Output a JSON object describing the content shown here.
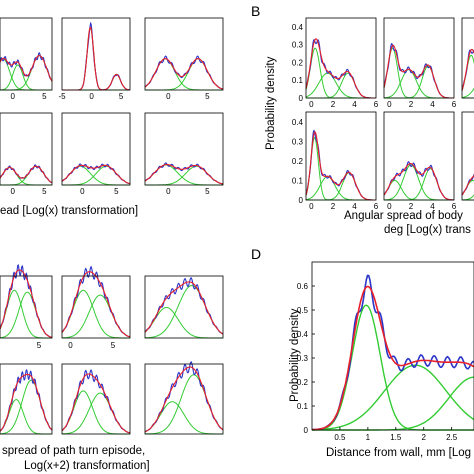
{
  "colors": {
    "fit": "#e8202a",
    "observed": "#2b35c8",
    "components": "#33cc33"
  },
  "panels": {
    "A": {
      "xlabel": "ead [Log(x) transformation]",
      "ticks": [
        [
          "0",
          "5"
        ],
        [
          "-5",
          "0",
          "5"
        ],
        [
          "0",
          "5"
        ],
        [
          "0",
          "5"
        ],
        [
          "0",
          "5"
        ],
        [
          "0",
          "5"
        ]
      ]
    },
    "B": {
      "letter": "B",
      "ylabel": "Probability density",
      "xlabel_line1": "Angular spread of body",
      "xlabel_line2": "deg [Log(x) trans",
      "yticks": [
        "0.4",
        "0.3",
        "0.2",
        "0.1",
        "0"
      ],
      "xticks": [
        "0",
        "2",
        "4",
        "6"
      ]
    },
    "C": {
      "xlabel_line1": "spread of path turn episode,",
      "xlabel_line2": "Log(x+2) transformation]",
      "ticks": [
        "5",
        "0",
        "5"
      ]
    },
    "D": {
      "letter": "D",
      "ylabel": "Probability density",
      "xlabel": "Distance from wall, mm [Log",
      "yticks": [
        "0.6",
        "0.5",
        "0.4",
        "0.3",
        "0.2",
        "0.1",
        "0"
      ],
      "xticks": [
        "0.5",
        "1",
        "1.5",
        "2",
        "2.5"
      ]
    }
  },
  "chart_data": [
    {
      "type": "line",
      "panel": "A",
      "title": "",
      "xlabel": "ead [Log(x) transformation]",
      "ylabel": "",
      "layout": "2x3 small multiples",
      "xlim": [
        -5,
        7
      ],
      "x_ticks": [
        -5,
        0,
        5
      ],
      "series_note": "red = fitted mixture, blue = observed density, green = mixture components",
      "subplots": [
        {
          "components": [
            [
              -1.5,
              1.0,
              0.5
            ],
            [
              0.8,
              0.8,
              0.4
            ],
            [
              4.2,
              1.2,
              0.55
            ]
          ]
        },
        {
          "components": [
            [
              -0.2,
              0.55,
              1.0
            ],
            [
              4.2,
              0.7,
              0.25
            ]
          ]
        },
        {
          "components": [
            [
              -0.4,
              1.2,
              0.5
            ],
            [
              3.8,
              1.2,
              0.5
            ]
          ]
        },
        {
          "components": [
            [
              -0.5,
              1.1,
              0.28
            ],
            [
              3.7,
              1.2,
              0.3
            ]
          ]
        },
        {
          "components": [
            [
              -0.3,
              1.5,
              0.3
            ],
            [
              3.5,
              1.5,
              0.3
            ]
          ]
        },
        {
          "components": [
            [
              -0.3,
              1.5,
              0.32
            ],
            [
              3.6,
              1.4,
              0.3
            ]
          ]
        }
      ]
    },
    {
      "type": "line",
      "panel": "B",
      "title": "",
      "xlabel": "Angular spread of body deg [Log(x) trans",
      "ylabel": "Probability density",
      "layout": "2x3 small multiples (partly visible)",
      "xlim": [
        -0.5,
        6
      ],
      "ylim": [
        0,
        0.45
      ],
      "x_ticks": [
        0,
        2,
        4,
        6
      ],
      "y_ticks": [
        0,
        0.1,
        0.2,
        0.3,
        0.4
      ],
      "subplots": [
        {
          "components": [
            [
              0.35,
              0.45,
              0.28
            ],
            [
              1.5,
              0.8,
              0.14
            ],
            [
              3.4,
              0.6,
              0.14
            ]
          ]
        },
        {
          "components": [
            [
              0.3,
              0.45,
              0.28
            ],
            [
              1.8,
              0.7,
              0.16
            ],
            [
              3.6,
              0.55,
              0.18
            ]
          ]
        },
        {
          "components": [
            [
              0.35,
              0.45,
              0.24
            ],
            [
              1.8,
              0.8,
              0.16
            ],
            [
              3.6,
              0.6,
              0.16
            ]
          ]
        },
        {
          "components": [
            [
              0.3,
              0.35,
              0.32
            ],
            [
              1.5,
              0.7,
              0.12
            ],
            [
              3.5,
              0.6,
              0.14
            ]
          ]
        },
        {
          "components": [
            [
              0.5,
              0.6,
              0.1
            ],
            [
              2.0,
              0.7,
              0.18
            ],
            [
              3.8,
              0.6,
              0.16
            ]
          ]
        },
        {
          "components": [
            [
              0.5,
              0.6,
              0.1
            ],
            [
              2.0,
              0.7,
              0.18
            ],
            [
              3.8,
              0.6,
              0.16
            ]
          ]
        }
      ]
    },
    {
      "type": "line",
      "panel": "C",
      "title": "",
      "xlabel": "spread of path turn episode, Log(x+2) transformation]",
      "ylabel": "",
      "layout": "2x3 small multiples",
      "xlim": [
        -1,
        7
      ],
      "x_ticks": [
        0,
        5
      ],
      "subplots": [
        {
          "components": [
            [
              1.2,
              1.2,
              0.5
            ],
            [
              3.2,
              1.3,
              0.48
            ]
          ]
        },
        {
          "components": [
            [
              1.5,
              1.2,
              0.5
            ],
            [
              3.5,
              1.3,
              0.45
            ]
          ]
        },
        {
          "components": [
            [
              1.2,
              1.2,
              0.32
            ],
            [
              3.8,
              1.4,
              0.55
            ]
          ]
        },
        {
          "components": [
            [
              1.5,
              1.1,
              0.32
            ],
            [
              3.8,
              1.4,
              0.5
            ]
          ]
        },
        {
          "components": [
            [
              1.5,
              1.1,
              0.4
            ],
            [
              3.5,
              1.3,
              0.38
            ]
          ]
        },
        {
          "components": [
            [
              1.8,
              1.2,
              0.3
            ],
            [
              4.0,
              1.3,
              0.55
            ]
          ]
        }
      ]
    },
    {
      "type": "line",
      "panel": "D",
      "title": "",
      "xlabel": "Distance from wall, mm [Log",
      "ylabel": "Probability density",
      "xlim": [
        0,
        2.9
      ],
      "ylim": [
        0,
        0.7
      ],
      "x_ticks": [
        0.5,
        1,
        1.5,
        2,
        2.5
      ],
      "y_ticks": [
        0,
        0.1,
        0.2,
        0.3,
        0.4,
        0.5,
        0.6
      ],
      "grid": false,
      "components": [
        [
          0.97,
          0.25,
          0.52
        ],
        [
          1.85,
          0.55,
          0.27
        ],
        [
          2.9,
          0.45,
          0.22
        ]
      ]
    }
  ]
}
